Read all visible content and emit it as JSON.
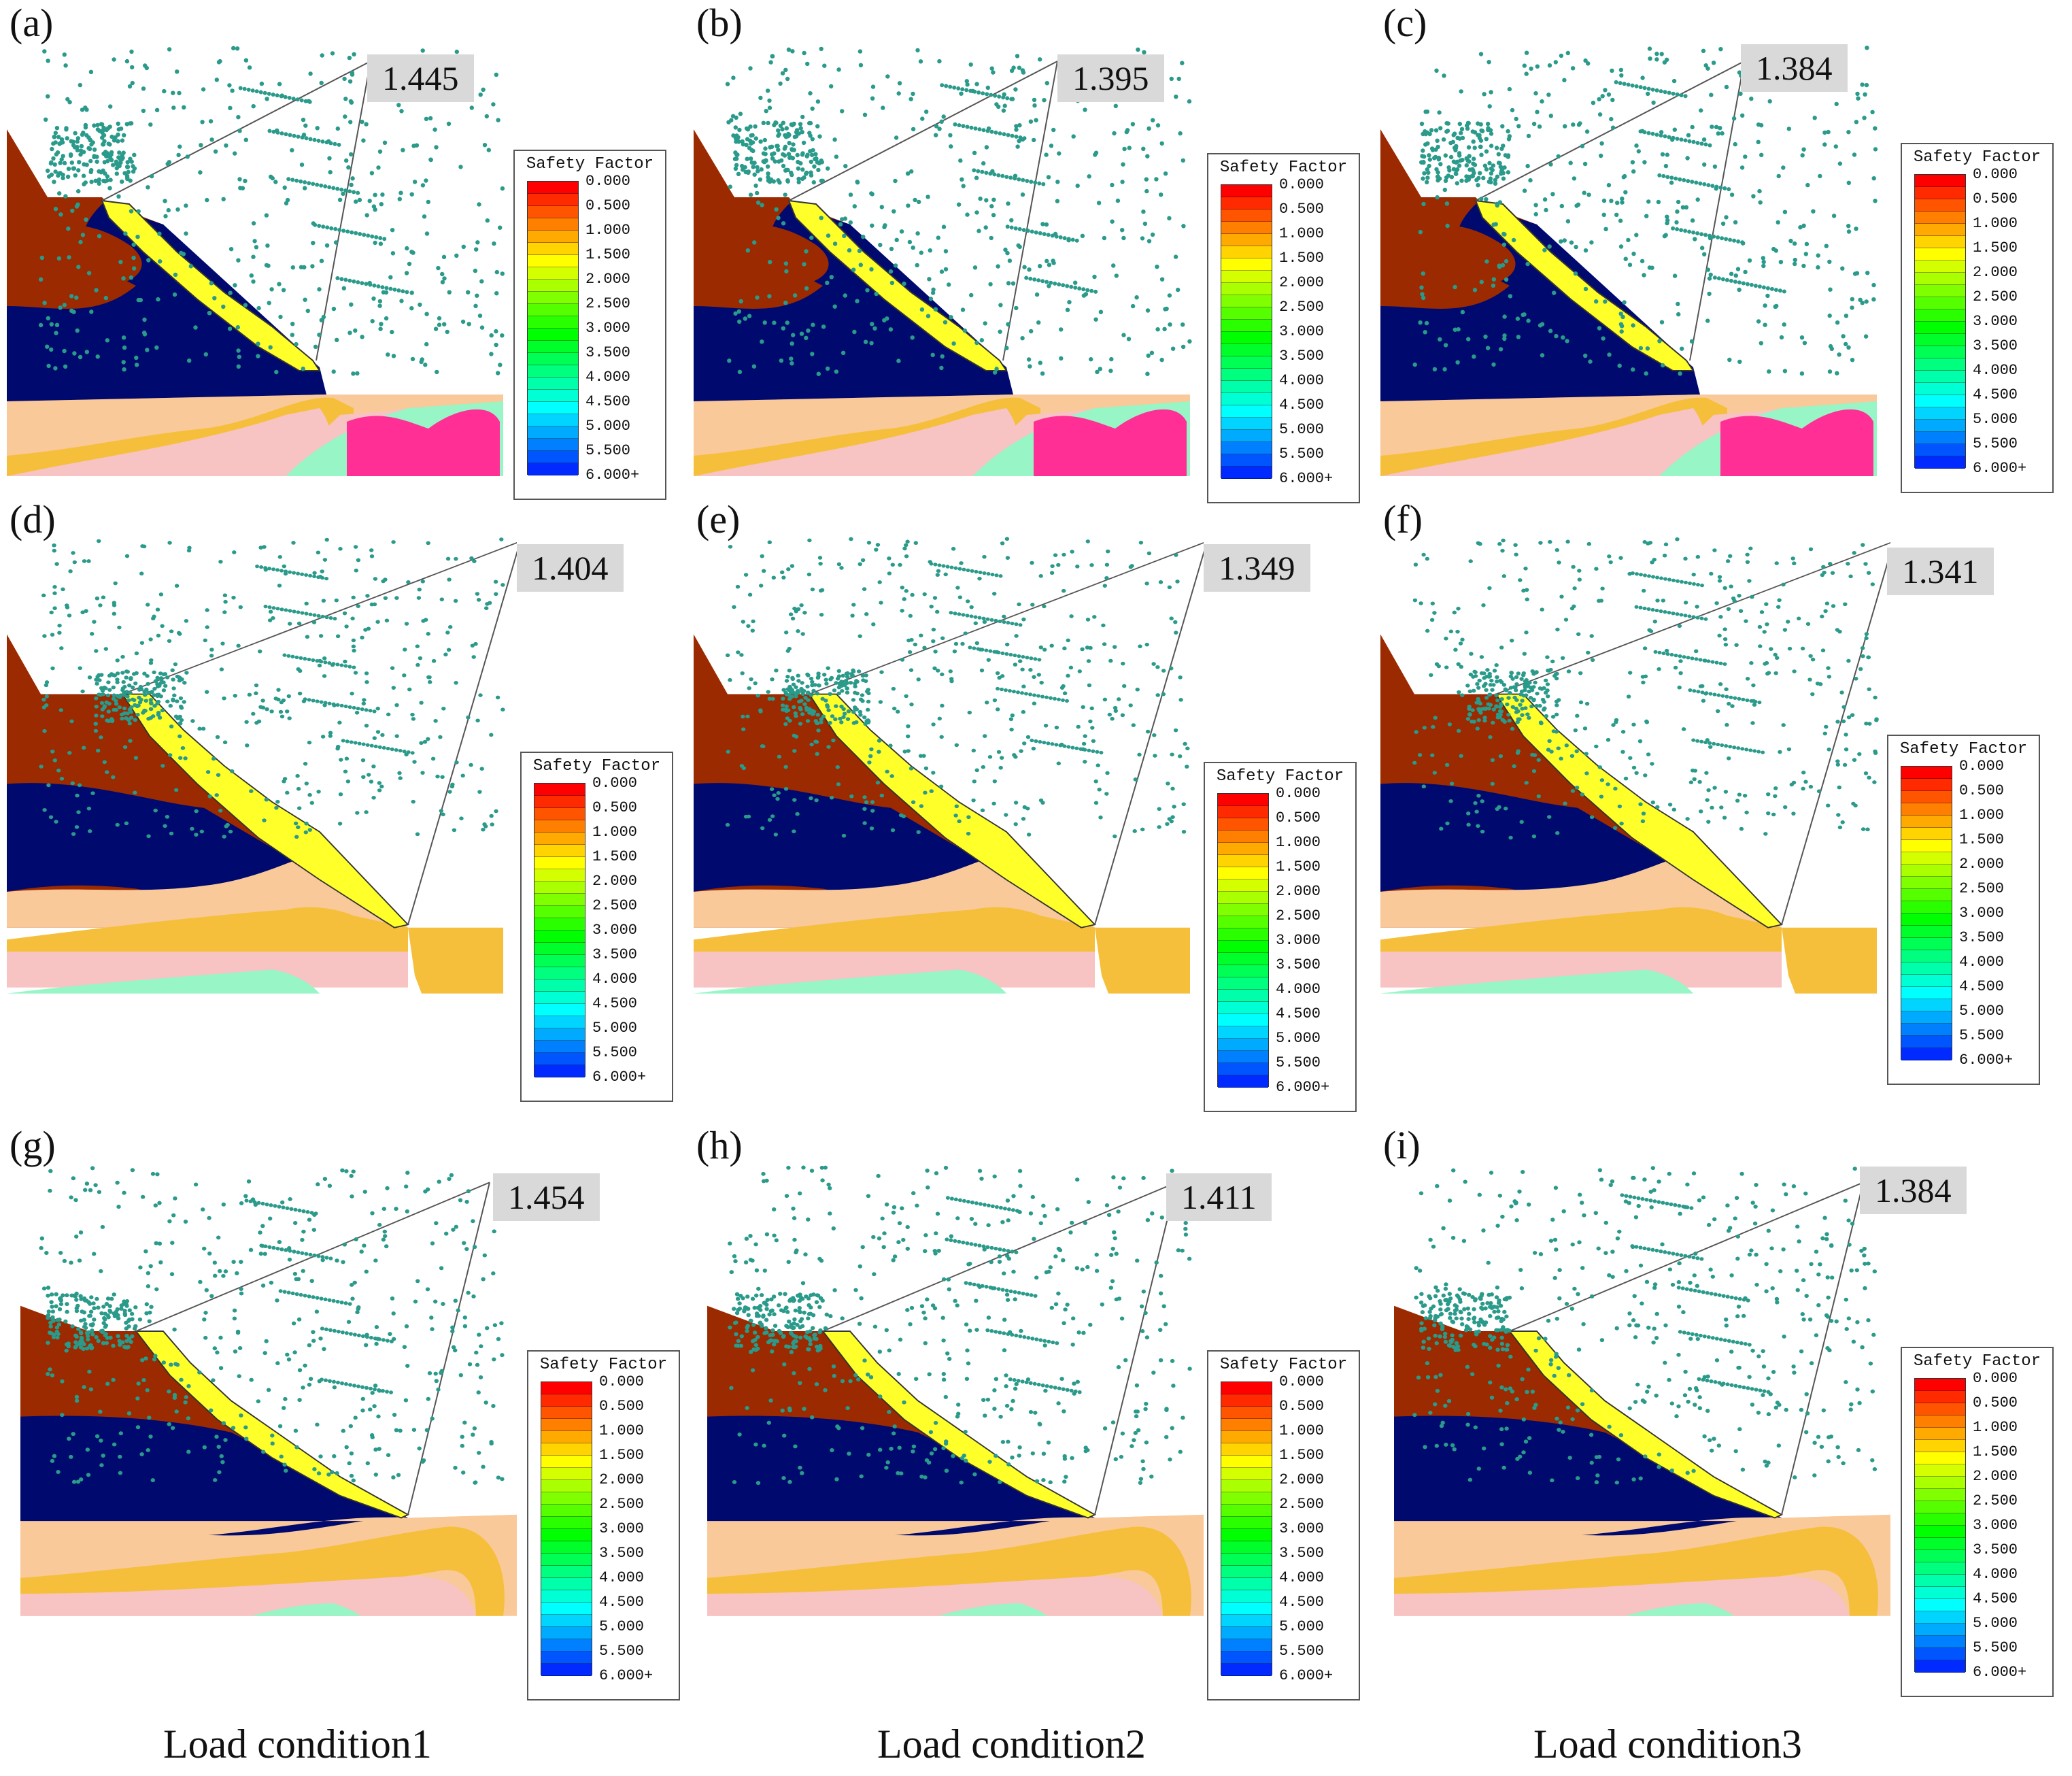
{
  "figure": {
    "legend_title": "Safety Factor",
    "legend_ticks": [
      "0.000",
      "0.500",
      "1.000",
      "1.500",
      "2.000",
      "2.500",
      "3.000",
      "3.500",
      "4.000",
      "4.500",
      "5.000",
      "5.500",
      "6.000+"
    ],
    "legend_colors": [
      "#ff0000",
      "#ff2a00",
      "#ff5500",
      "#ff7f00",
      "#ffaa00",
      "#ffd400",
      "#ffff00",
      "#d4ff00",
      "#aaff00",
      "#7fff00",
      "#55ff00",
      "#2aff00",
      "#00ff00",
      "#00ff2a",
      "#00ff55",
      "#00ff7f",
      "#00ffaa",
      "#00ffd4",
      "#00ffff",
      "#00d4ff",
      "#00aaff",
      "#007fff",
      "#0055ff",
      "#002aff"
    ],
    "material_colors": {
      "brown": "#9b2a00",
      "navy": "#000a6e",
      "peach": "#f9c99a",
      "orange": "#f5bf3c",
      "pink": "#f7c3c3",
      "mint": "#97f5c6",
      "magenta": "#ff2f95",
      "slip": "#ffff2a",
      "dots": "#2a9a8a"
    }
  },
  "panels": [
    {
      "label": "(a)",
      "fos": "1.445"
    },
    {
      "label": "(b)",
      "fos": "1.395"
    },
    {
      "label": "(c)",
      "fos": "1.384"
    },
    {
      "label": "(d)",
      "fos": "1.404"
    },
    {
      "label": "(e)",
      "fos": "1.349"
    },
    {
      "label": "(f)",
      "fos": "1.341"
    },
    {
      "label": "(g)",
      "fos": "1.454"
    },
    {
      "label": "(h)",
      "fos": "1.411"
    },
    {
      "label": "(i)",
      "fos": "1.384"
    }
  ],
  "captions": [
    "Load condition1",
    "Load condition2",
    "Load condition3"
  ]
}
